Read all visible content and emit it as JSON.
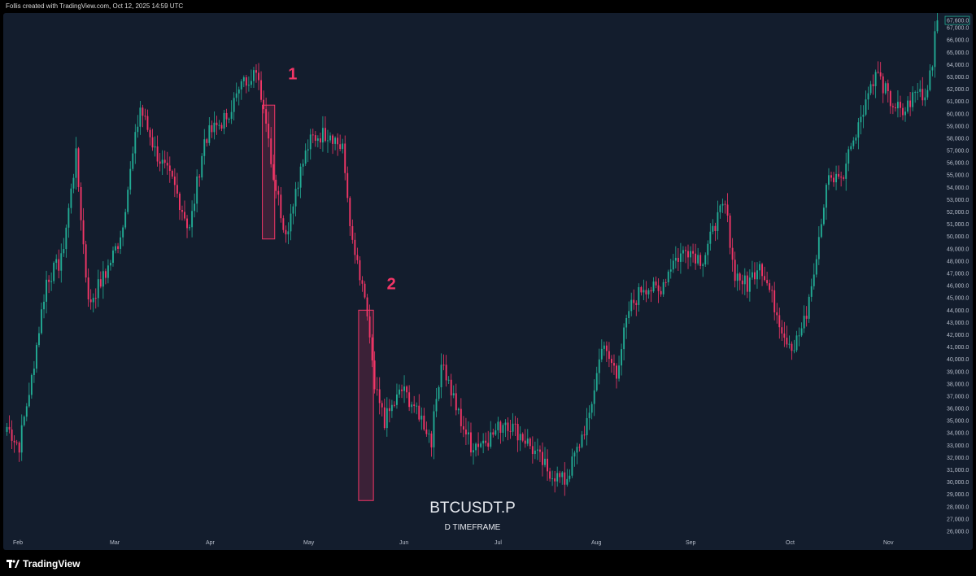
{
  "header": {
    "attribution": "Follis created with TradingView.com, Oct 12, 2025 14:59 UTC"
  },
  "footer": {
    "brand": "TradingView"
  },
  "colors": {
    "background": "#131d2d",
    "up": "#22ab94",
    "down": "#f23667",
    "axis_text": "#b8bfcc"
  },
  "chart_data": {
    "type": "candlestick",
    "title": "BTCUSDT.P",
    "subtitle": "D TIMEFRAME",
    "x_labels": [
      "Feb",
      "Mar",
      "Apr",
      "May",
      "Jun",
      "Jul",
      "Aug",
      "Sep",
      "Oct",
      "Nov"
    ],
    "y_ticks": [
      26000,
      27000,
      28000,
      29000,
      30000,
      31000,
      32000,
      33000,
      34000,
      35000,
      36000,
      37000,
      38000,
      39000,
      40000,
      41000,
      42000,
      43000,
      44000,
      45000,
      46000,
      47000,
      48000,
      49000,
      50000,
      51000,
      52000,
      53000,
      54000,
      55000,
      56000,
      57000,
      58000,
      59000,
      60000,
      61000,
      62000,
      63000,
      64000,
      65000,
      66000,
      67000
    ],
    "ylim": [
      25800,
      68200
    ],
    "last_price": 67600,
    "annotations": [
      {
        "label": "1",
        "price": 62800,
        "from_index": 104,
        "to_index": 108,
        "box_top": 60700,
        "box_bottom": 49800
      },
      {
        "label": "2",
        "price": 45700,
        "from_index": 143,
        "to_index": 148,
        "box_top": 44000,
        "box_bottom": 28500
      }
    ],
    "anchors": [
      [
        0,
        34500
      ],
      [
        5,
        33000
      ],
      [
        10,
        38500
      ],
      [
        16,
        46500
      ],
      [
        22,
        48000
      ],
      [
        28,
        56500
      ],
      [
        33,
        44500
      ],
      [
        40,
        47000
      ],
      [
        46,
        50000
      ],
      [
        54,
        60500
      ],
      [
        60,
        57000
      ],
      [
        68,
        54000
      ],
      [
        74,
        50500
      ],
      [
        80,
        58000
      ],
      [
        88,
        59500
      ],
      [
        96,
        62500
      ],
      [
        100,
        63500
      ],
      [
        104,
        61000
      ],
      [
        108,
        55000
      ],
      [
        113,
        50000
      ],
      [
        117,
        54000
      ],
      [
        123,
        58000
      ],
      [
        131,
        58500
      ],
      [
        136,
        57000
      ],
      [
        140,
        49500
      ],
      [
        143,
        46500
      ],
      [
        146,
        43500
      ],
      [
        149,
        37500
      ],
      [
        153,
        35000
      ],
      [
        160,
        37500
      ],
      [
        166,
        36000
      ],
      [
        172,
        33500
      ],
      [
        176,
        40000
      ],
      [
        182,
        36000
      ],
      [
        188,
        33000
      ],
      [
        195,
        33500
      ],
      [
        202,
        35000
      ],
      [
        210,
        33500
      ],
      [
        219,
        31000
      ],
      [
        226,
        30000
      ],
      [
        230,
        32000
      ],
      [
        236,
        35500
      ],
      [
        241,
        41000
      ],
      [
        247,
        39000
      ],
      [
        252,
        44000
      ],
      [
        258,
        46000
      ],
      [
        264,
        45500
      ],
      [
        270,
        48000
      ],
      [
        276,
        49000
      ],
      [
        282,
        48000
      ],
      [
        288,
        51500
      ],
      [
        291,
        52500
      ],
      [
        295,
        47000
      ],
      [
        300,
        46000
      ],
      [
        305,
        48000
      ],
      [
        310,
        45000
      ],
      [
        315,
        42000
      ],
      [
        319,
        41000
      ],
      [
        324,
        43500
      ],
      [
        328,
        48500
      ],
      [
        333,
        55000
      ],
      [
        338,
        54500
      ],
      [
        342,
        57500
      ],
      [
        346,
        60000
      ],
      [
        352,
        63500
      ],
      [
        358,
        61000
      ],
      [
        363,
        60000
      ],
      [
        369,
        62000
      ],
      [
        372,
        61500
      ],
      [
        375,
        64500
      ],
      [
        377,
        67600
      ]
    ]
  }
}
